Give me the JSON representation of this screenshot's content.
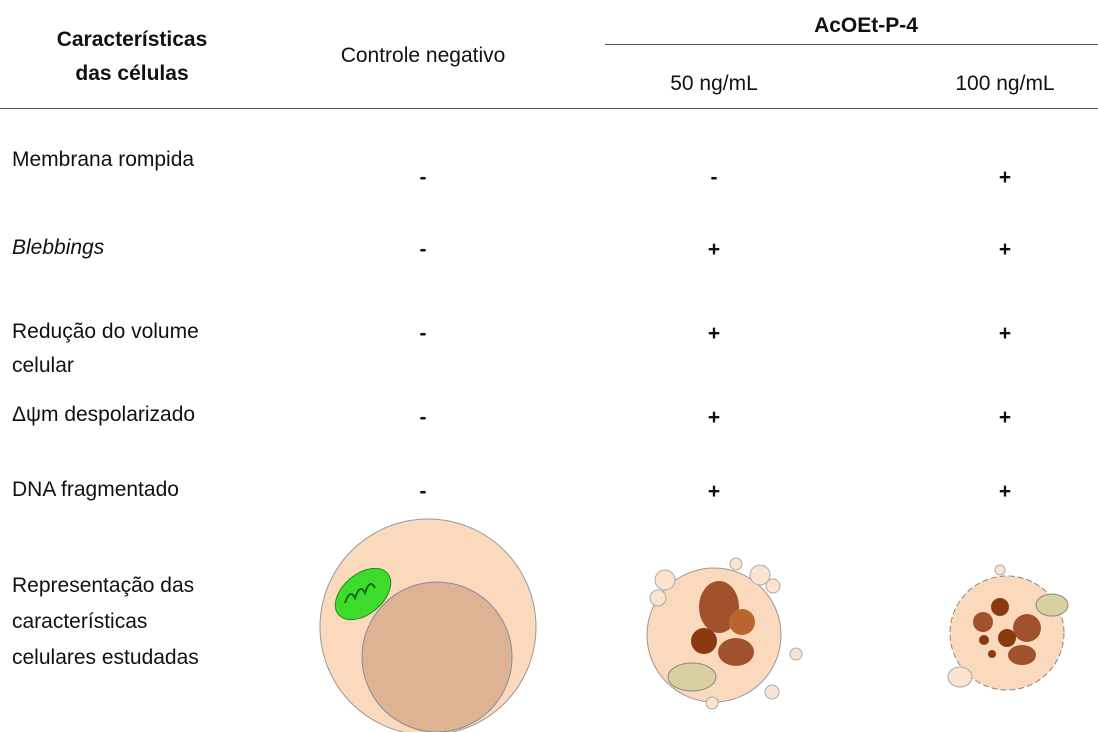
{
  "header": {
    "feature_col": [
      "Características",
      "das células"
    ],
    "control_col": "Controle negativo",
    "group": "AcOEt-P-4",
    "subcols": [
      "50 ng/mL",
      "100 ng/mL"
    ]
  },
  "rows": [
    {
      "label": [
        "Membrana rompida"
      ],
      "italic": false,
      "cells": [
        "-",
        "-",
        "+"
      ]
    },
    {
      "label": [
        "Blebbings"
      ],
      "italic": true,
      "cells": [
        "-",
        "+",
        "+"
      ]
    },
    {
      "label": [
        "Redução do volume",
        "celular"
      ],
      "italic": false,
      "cells": [
        "-",
        "+",
        "+"
      ]
    },
    {
      "label": [
        "Δψm despolarizado"
      ],
      "italic": false,
      "cells": [
        "-",
        "+",
        "+"
      ]
    },
    {
      "label": [
        "DNA fragmentado"
      ],
      "italic": false,
      "cells": [
        "-",
        "+",
        "+"
      ]
    }
  ],
  "representation": {
    "label": [
      "Representação das",
      "características",
      "celulares estudadas"
    ]
  }
}
